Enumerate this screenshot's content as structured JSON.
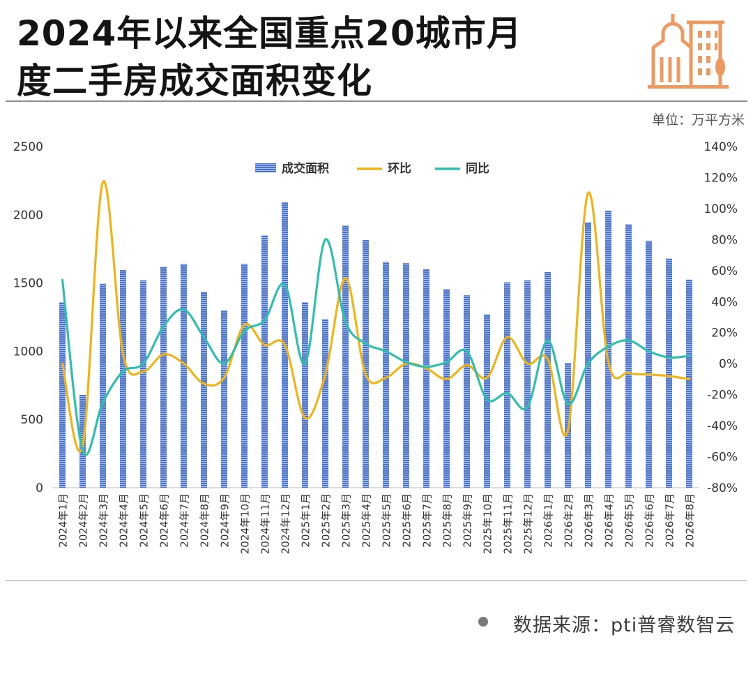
{
  "header": {
    "title_line1": "2024年以来全国重点20城市月",
    "title_line2": "度二手房成交面积变化",
    "icon": "building-icon",
    "unit": "单位：万平方米"
  },
  "footer": {
    "source": "数据来源：pti普睿数智云"
  },
  "colors": {
    "bar": "#4a72cf",
    "mom": "#f0b416",
    "yoy": "#2fbfae",
    "icon": "#ec9a62"
  },
  "chart_data": {
    "type": "bar",
    "categories": [
      "2024年1月",
      "2024年2月",
      "2024年3月",
      "2024年4月",
      "2024年5月",
      "2024年6月",
      "2024年7月",
      "2024年8月",
      "2024年9月",
      "2024年10月",
      "2024年11月",
      "2024年12月",
      "2025年1月",
      "2025年2月",
      "2025年3月",
      "2025年4月",
      "2025年5月",
      "2025年6月",
      "2025年7月",
      "2025年8月",
      "2025年9月",
      "2025年10月",
      "2025年11月",
      "2025年12月",
      "2026年1月",
      "2026年2月",
      "2026年3月",
      "2026年4月",
      "2026年5月",
      "2026年6月",
      "2026年7月",
      "2026年8月"
    ],
    "series": [
      {
        "name": "成交面积",
        "type": "bar",
        "axis": "left",
        "values": [
          1360,
          680,
          1495,
          1595,
          1520,
          1620,
          1640,
          1435,
          1300,
          1640,
          1850,
          2090,
          1360,
          1235,
          1920,
          1815,
          1655,
          1645,
          1600,
          1455,
          1410,
          1270,
          1505,
          1520,
          1580,
          915,
          1945,
          2030,
          1930,
          1810,
          1680,
          1525
        ]
      },
      {
        "name": "环比",
        "type": "line",
        "axis": "right",
        "values": [
          0,
          -53,
          117,
          6,
          -5,
          6,
          0,
          -13,
          -9,
          25,
          12,
          12,
          -35,
          -7,
          55,
          -7,
          -9,
          0,
          -3,
          -10,
          -1,
          -9,
          17,
          0,
          3,
          -43,
          110,
          1,
          -6,
          -7,
          -8,
          -10
        ]
      },
      {
        "name": "同比",
        "type": "line",
        "axis": "right",
        "values": [
          54,
          -56,
          -25,
          -5,
          0,
          24,
          35,
          17,
          0,
          21,
          28,
          51,
          0,
          80,
          27,
          13,
          8,
          1,
          -2,
          1,
          8,
          -23,
          -19,
          -28,
          15,
          -26,
          0,
          11,
          15,
          8,
          4,
          5
        ]
      }
    ],
    "y_left": {
      "min": 0,
      "max": 2500,
      "ticks": [
        "0",
        "500",
        "1000",
        "1500",
        "2000",
        "2500"
      ]
    },
    "y_right": {
      "min": -80,
      "max": 140,
      "ticks": [
        "-80%",
        "-60%",
        "-40%",
        "-20%",
        "0%",
        "20%",
        "40%",
        "60%",
        "80%",
        "100%",
        "120%",
        "140%"
      ]
    },
    "legend_position": "top-center",
    "grid": false
  }
}
